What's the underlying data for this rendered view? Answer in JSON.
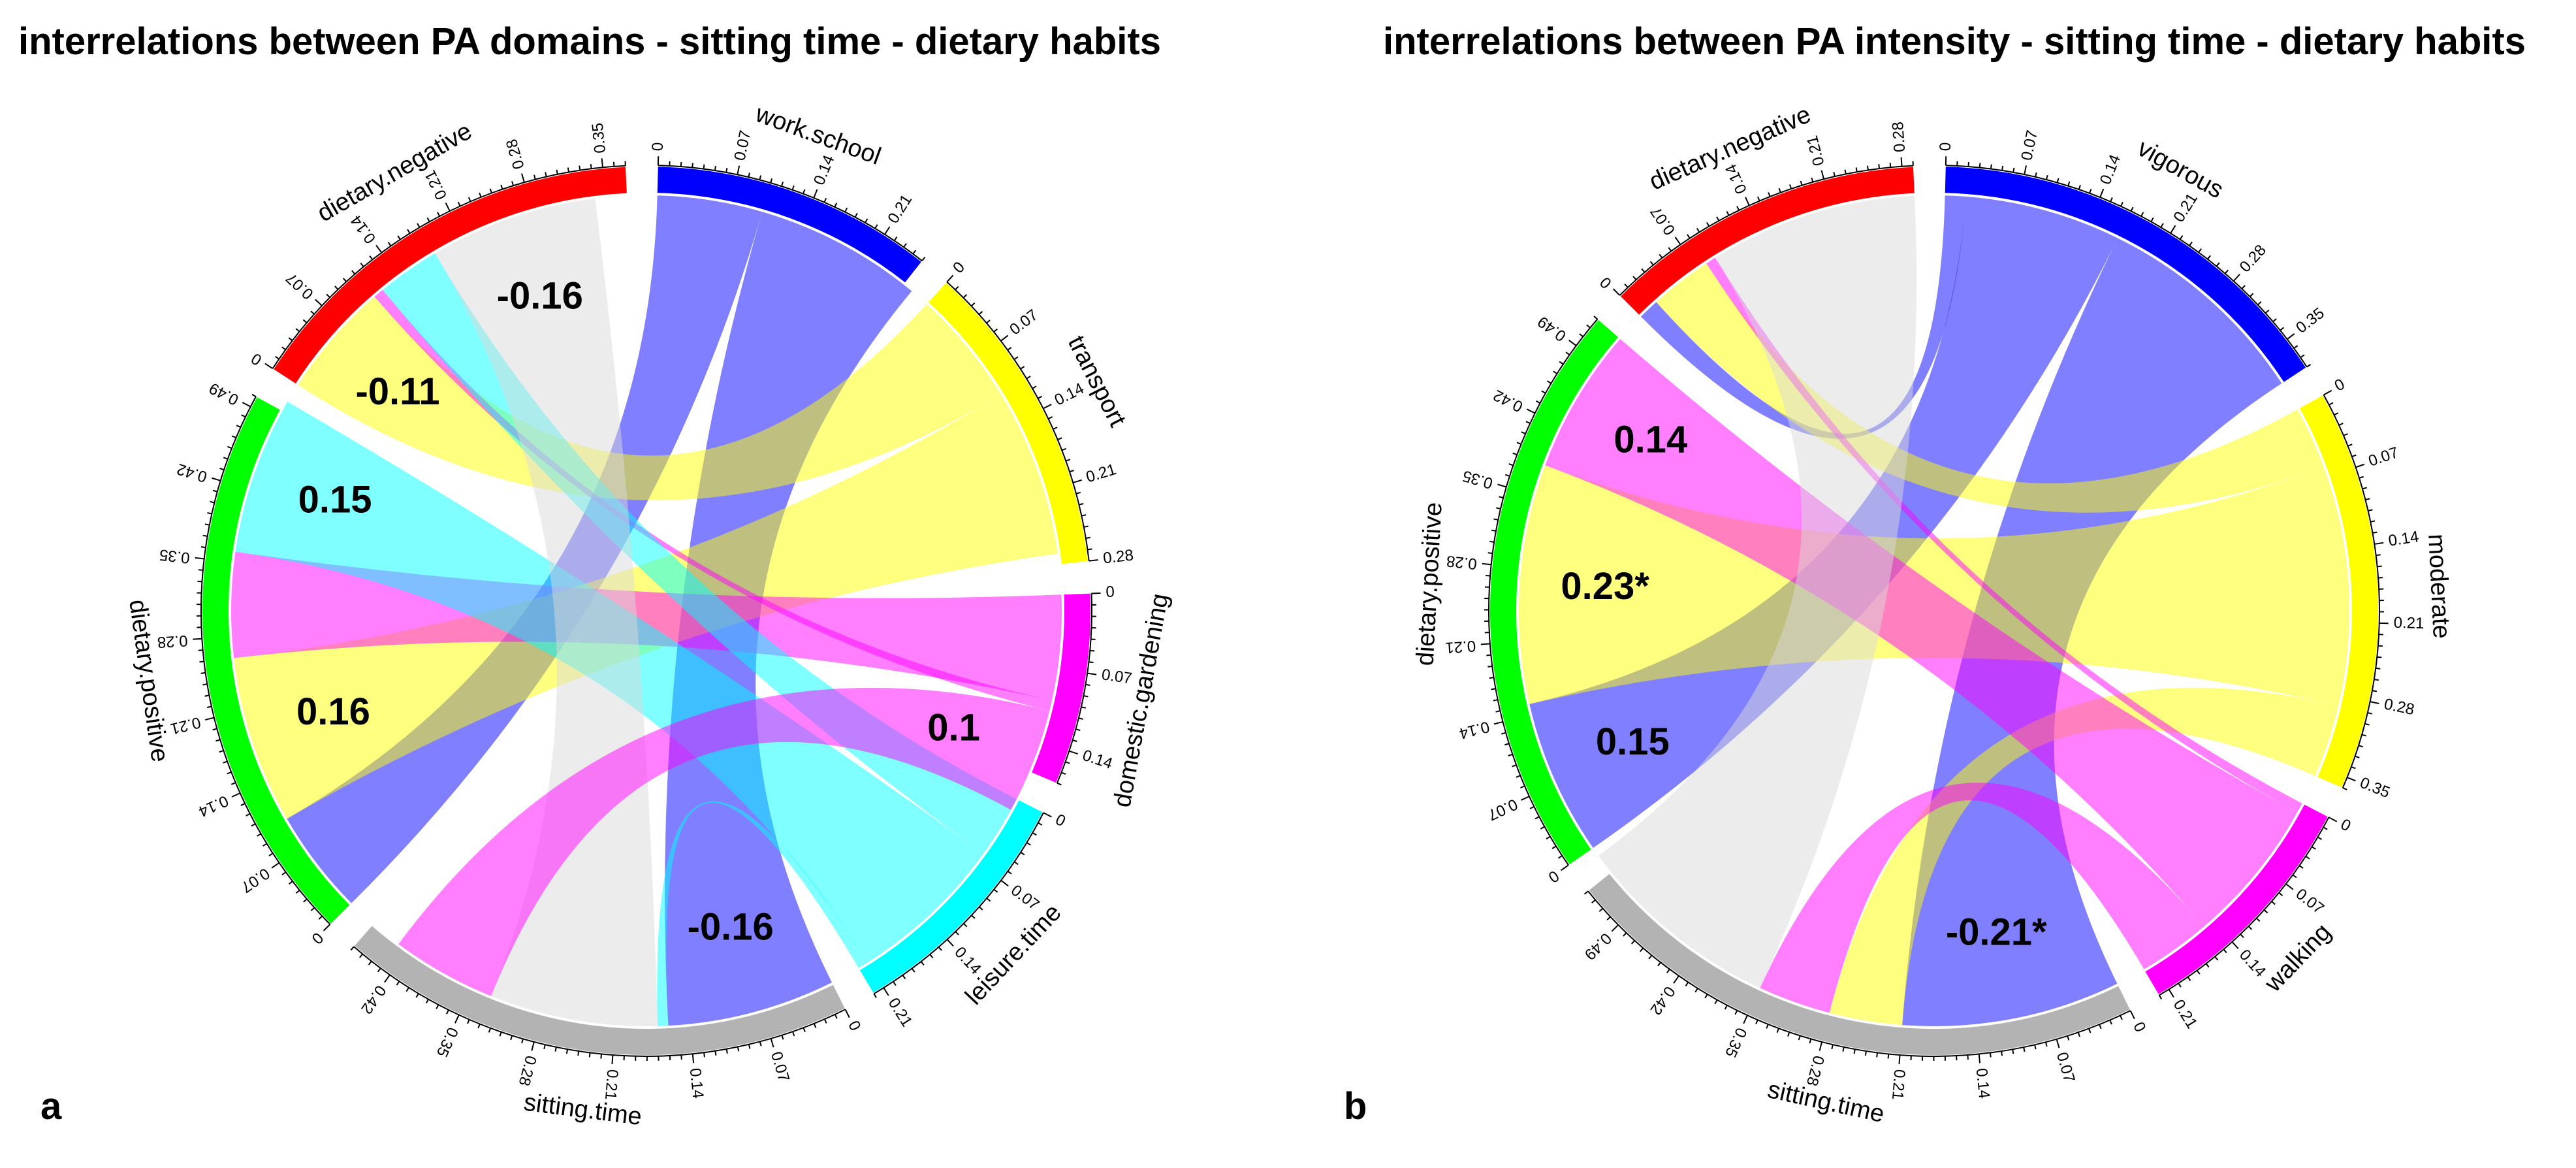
{
  "chart_data": [
    {
      "type": "chord",
      "panel": "a",
      "title": "interrelations between PA domains - sitting time - dietary habits",
      "sectors": [
        {
          "name": "work.school",
          "color": "#0000ff",
          "max": 0.25,
          "ticks": [
            "0",
            "0.07",
            "0.14",
            "0.21"
          ]
        },
        {
          "name": "transport",
          "color": "#ffff00",
          "max": 0.28,
          "ticks": [
            "0",
            "0.07",
            "0.14",
            "0.21",
            "0.28"
          ]
        },
        {
          "name": "domestic.gardening",
          "color": "#ff00ff",
          "max": 0.17,
          "ticks": [
            "0",
            "0.07",
            "0.14"
          ]
        },
        {
          "name": "leisure.time",
          "color": "#00ffff",
          "max": 0.22,
          "ticks": [
            "0",
            "0.07",
            "0.14",
            "0.21"
          ]
        },
        {
          "name": "sitting.time",
          "color": "#b3b3b3",
          "max": 0.46,
          "ticks": [
            "0",
            "0.07",
            "0.14",
            "0.21",
            "0.28",
            "0.35",
            "0.42"
          ]
        },
        {
          "name": "dietary.positive",
          "color": "#00ff00",
          "max": 0.5,
          "ticks": [
            "0",
            "0.07",
            "0.14",
            "0.21",
            "0.28",
            "0.35",
            "0.42",
            "0.49"
          ]
        },
        {
          "name": "dietary.negative",
          "color": "#ff0000",
          "max": 0.37,
          "ticks": [
            "0",
            "0.07",
            "0.14",
            "0.21",
            "0.28",
            "0.35"
          ]
        }
      ],
      "links": [
        {
          "from": "work.school",
          "to": "dietary.positive",
          "value": 0.1,
          "color": "#0000ff"
        },
        {
          "from": "work.school",
          "to": "sitting.time",
          "value": 0.16,
          "color": "#0000ff",
          "label": "-0.16"
        },
        {
          "from": "transport",
          "to": "dietary.negative",
          "value": 0.11,
          "color": "#ffff00",
          "label": "-0.11"
        },
        {
          "from": "transport",
          "to": "dietary.positive",
          "value": 0.16,
          "color": "#ffff00",
          "label": "0.16"
        },
        {
          "from": "domestic.gardening",
          "to": "dietary.positive",
          "value": 0.1,
          "color": "#ff00ff"
        },
        {
          "from": "domestic.gardening",
          "to": "dietary.negative",
          "value": 0.01,
          "color": "#ff00ff"
        },
        {
          "from": "leisure.time",
          "to": "dietary.negative",
          "value": 0.06,
          "color": "#00ffff"
        },
        {
          "from": "leisure.time",
          "to": "dietary.positive",
          "value": 0.15,
          "color": "#00ffff",
          "label": "0.15"
        },
        {
          "from": "leisure.time",
          "to": "sitting.time",
          "value": 0.01,
          "color": "#00ffff"
        },
        {
          "from": "sitting.time",
          "to": "dietary.negative",
          "value": 0.16,
          "color": "#d9d9d9",
          "label": "-0.16"
        },
        {
          "from": "sitting.time",
          "to": "domestic.gardening",
          "value": 0.1,
          "color": "#ff00ff",
          "label": "0.1"
        }
      ]
    },
    {
      "type": "chord",
      "panel": "b",
      "title": "interrelations between PA intensity - sitting time - dietary habits",
      "sectors": [
        {
          "name": "vigorous",
          "color": "#0000ff",
          "max": 0.38,
          "ticks": [
            "0",
            "0.07",
            "0.14",
            "0.21",
            "0.28",
            "0.35"
          ]
        },
        {
          "name": "moderate",
          "color": "#ffff00",
          "max": 0.36,
          "ticks": [
            "0",
            "0.07",
            "0.14",
            "0.21",
            "0.28",
            "0.35"
          ]
        },
        {
          "name": "walking",
          "color": "#ff00ff",
          "max": 0.22,
          "ticks": [
            "0",
            "0.07",
            "0.14",
            "0.21"
          ]
        },
        {
          "name": "sitting.time",
          "color": "#b3b3b3",
          "max": 0.53,
          "ticks": [
            "0",
            "0.07",
            "0.14",
            "0.21",
            "0.28",
            "0.35",
            "0.42",
            "0.49"
          ]
        },
        {
          "name": "dietary.positive",
          "color": "#00ff00",
          "max": 0.52,
          "ticks": [
            "0",
            "0.07",
            "0.14",
            "0.21",
            "0.28",
            "0.35",
            "0.42",
            "0.49"
          ]
        },
        {
          "name": "dietary.negative",
          "color": "#ff0000",
          "max": 0.29,
          "ticks": [
            "0",
            "0.07",
            "0.14",
            "0.21",
            "0.28"
          ]
        }
      ],
      "links": [
        {
          "from": "vigorous",
          "to": "dietary.negative",
          "value": 0.02,
          "color": "#0000ff"
        },
        {
          "from": "vigorous",
          "to": "dietary.positive",
          "value": 0.15,
          "color": "#0000ff",
          "label": "0.15"
        },
        {
          "from": "vigorous",
          "to": "sitting.time",
          "value": 0.21,
          "color": "#0000ff",
          "label": "-0.21*"
        },
        {
          "from": "moderate",
          "to": "dietary.negative",
          "value": 0.06,
          "color": "#ffff00"
        },
        {
          "from": "moderate",
          "to": "dietary.positive",
          "value": 0.23,
          "color": "#ffff00",
          "label": "0.23*"
        },
        {
          "from": "moderate",
          "to": "sitting.time",
          "value": 0.07,
          "color": "#ffff00"
        },
        {
          "from": "walking",
          "to": "dietary.negative",
          "value": 0.01,
          "color": "#ff00ff"
        },
        {
          "from": "walking",
          "to": "dietary.positive",
          "value": 0.14,
          "color": "#ff00ff",
          "label": "0.14"
        },
        {
          "from": "walking",
          "to": "sitting.time",
          "value": 0.07,
          "color": "#ff00ff"
        },
        {
          "from": "sitting.time",
          "to": "dietary.negative",
          "value": 0.2,
          "color": "#d9d9d9"
        }
      ]
    }
  ],
  "panel_letters": {
    "a": "a",
    "b": "b"
  }
}
